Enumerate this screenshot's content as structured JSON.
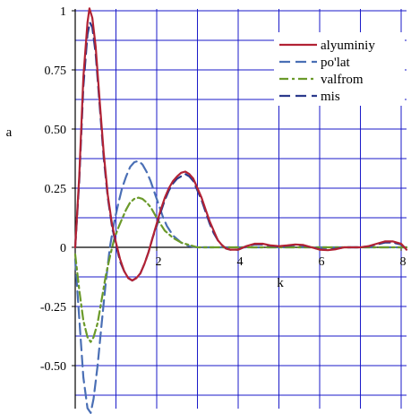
{
  "chart_data": {
    "type": "line",
    "title": "",
    "xlabel": "k",
    "ylabel": "a",
    "xlim": [
      0,
      8.2
    ],
    "ylim": [
      -0.68,
      1.02
    ],
    "grid": true,
    "grid_color": "#1a1ac8",
    "legend_position": "top-right",
    "x_ticks": [
      {
        "value": 2,
        "label": "2"
      },
      {
        "value": 4,
        "label": "4"
      },
      {
        "value": 6,
        "label": "6"
      },
      {
        "value": 8,
        "label": "8"
      }
    ],
    "y_ticks": [
      {
        "value": 1,
        "label": "1"
      },
      {
        "value": 0.75,
        "label": "0.75"
      },
      {
        "value": 0.5,
        "label": "0.50"
      },
      {
        "value": 0.25,
        "label": "0.25"
      },
      {
        "value": 0,
        "label": "0"
      },
      {
        "value": -0.25,
        "label": "-0.25"
      },
      {
        "value": -0.5,
        "label": "-0.50"
      }
    ],
    "series": [
      {
        "name": "alyuminiy",
        "color": "#b22234",
        "dash": "solid",
        "points": [
          [
            0,
            0
          ],
          [
            0.1,
            0.3
          ],
          [
            0.2,
            0.72
          ],
          [
            0.3,
            0.95
          ],
          [
            0.35,
            1.01
          ],
          [
            0.42,
            0.97
          ],
          [
            0.5,
            0.85
          ],
          [
            0.6,
            0.62
          ],
          [
            0.7,
            0.4
          ],
          [
            0.8,
            0.22
          ],
          [
            0.9,
            0.1
          ],
          [
            1.0,
            0.02
          ],
          [
            1.1,
            -0.05
          ],
          [
            1.2,
            -0.1
          ],
          [
            1.3,
            -0.13
          ],
          [
            1.4,
            -0.14
          ],
          [
            1.5,
            -0.13
          ],
          [
            1.6,
            -0.11
          ],
          [
            1.7,
            -0.07
          ],
          [
            1.8,
            -0.02
          ],
          [
            1.9,
            0.04
          ],
          [
            2.0,
            0.1
          ],
          [
            2.1,
            0.16
          ],
          [
            2.2,
            0.21
          ],
          [
            2.3,
            0.25
          ],
          [
            2.4,
            0.28
          ],
          [
            2.5,
            0.3
          ],
          [
            2.6,
            0.315
          ],
          [
            2.7,
            0.32
          ],
          [
            2.8,
            0.31
          ],
          [
            2.9,
            0.29
          ],
          [
            3.0,
            0.25
          ],
          [
            3.1,
            0.21
          ],
          [
            3.2,
            0.16
          ],
          [
            3.3,
            0.11
          ],
          [
            3.4,
            0.07
          ],
          [
            3.5,
            0.03
          ],
          [
            3.6,
            0.01
          ],
          [
            3.7,
            -0.005
          ],
          [
            3.8,
            -0.01
          ],
          [
            4.0,
            -0.01
          ],
          [
            4.2,
            0.005
          ],
          [
            4.4,
            0.015
          ],
          [
            4.6,
            0.015
          ],
          [
            4.8,
            0.008
          ],
          [
            5.0,
            0.005
          ],
          [
            5.2,
            0.008
          ],
          [
            5.4,
            0.012
          ],
          [
            5.6,
            0.01
          ],
          [
            5.8,
            0.0
          ],
          [
            6.0,
            -0.01
          ],
          [
            6.2,
            -0.012
          ],
          [
            6.4,
            -0.008
          ],
          [
            6.6,
            0.0
          ],
          [
            6.8,
            0.0
          ],
          [
            7.0,
            0.0
          ],
          [
            7.2,
            0.005
          ],
          [
            7.4,
            0.015
          ],
          [
            7.6,
            0.025
          ],
          [
            7.8,
            0.025
          ],
          [
            8.0,
            0.015
          ],
          [
            8.2,
            -0.01
          ]
        ]
      },
      {
        "name": "po'lat",
        "color": "#4a6fb5",
        "dash": "long",
        "points": [
          [
            0,
            -0.05
          ],
          [
            0.1,
            -0.3
          ],
          [
            0.2,
            -0.55
          ],
          [
            0.3,
            -0.68
          ],
          [
            0.38,
            -0.7
          ],
          [
            0.45,
            -0.64
          ],
          [
            0.55,
            -0.5
          ],
          [
            0.65,
            -0.32
          ],
          [
            0.75,
            -0.15
          ],
          [
            0.85,
            0.0
          ],
          [
            0.95,
            0.1
          ],
          [
            1.05,
            0.18
          ],
          [
            1.15,
            0.25
          ],
          [
            1.25,
            0.3
          ],
          [
            1.35,
            0.34
          ],
          [
            1.45,
            0.36
          ],
          [
            1.55,
            0.365
          ],
          [
            1.65,
            0.35
          ],
          [
            1.75,
            0.32
          ],
          [
            1.85,
            0.28
          ],
          [
            1.95,
            0.23
          ],
          [
            2.05,
            0.18
          ],
          [
            2.15,
            0.13
          ],
          [
            2.25,
            0.09
          ],
          [
            2.4,
            0.05
          ],
          [
            2.6,
            0.02
          ],
          [
            2.8,
            0.005
          ],
          [
            3.0,
            0.0
          ],
          [
            3.5,
            0.0
          ],
          [
            4.0,
            0.0
          ],
          [
            5.0,
            0.0
          ],
          [
            6.0,
            0.0
          ],
          [
            7.0,
            0.0
          ],
          [
            8.2,
            0.0
          ]
        ]
      },
      {
        "name": "valfrom",
        "color": "#6b9a2a",
        "dash": "dashdot",
        "points": [
          [
            0,
            -0.03
          ],
          [
            0.1,
            -0.18
          ],
          [
            0.2,
            -0.31
          ],
          [
            0.3,
            -0.38
          ],
          [
            0.38,
            -0.4
          ],
          [
            0.45,
            -0.38
          ],
          [
            0.55,
            -0.32
          ],
          [
            0.65,
            -0.22
          ],
          [
            0.75,
            -0.12
          ],
          [
            0.85,
            -0.04
          ],
          [
            0.95,
            0.03
          ],
          [
            1.05,
            0.08
          ],
          [
            1.15,
            0.12
          ],
          [
            1.25,
            0.16
          ],
          [
            1.35,
            0.19
          ],
          [
            1.45,
            0.205
          ],
          [
            1.55,
            0.21
          ],
          [
            1.65,
            0.205
          ],
          [
            1.75,
            0.19
          ],
          [
            1.85,
            0.17
          ],
          [
            1.95,
            0.14
          ],
          [
            2.05,
            0.11
          ],
          [
            2.2,
            0.07
          ],
          [
            2.4,
            0.04
          ],
          [
            2.6,
            0.02
          ],
          [
            2.8,
            0.01
          ],
          [
            3.0,
            0.0
          ],
          [
            4.0,
            0.0
          ],
          [
            5.0,
            0.0
          ],
          [
            6.0,
            0.0
          ],
          [
            7.0,
            0.0
          ],
          [
            8.2,
            0.0
          ]
        ]
      },
      {
        "name": "mis",
        "color": "#2b3a8c",
        "dash": "long",
        "points": [
          [
            0,
            0
          ],
          [
            0.1,
            0.28
          ],
          [
            0.2,
            0.68
          ],
          [
            0.3,
            0.9
          ],
          [
            0.36,
            0.95
          ],
          [
            0.42,
            0.93
          ],
          [
            0.5,
            0.82
          ],
          [
            0.6,
            0.6
          ],
          [
            0.7,
            0.38
          ],
          [
            0.8,
            0.21
          ],
          [
            0.9,
            0.09
          ],
          [
            1.0,
            0.01
          ],
          [
            1.1,
            -0.06
          ],
          [
            1.2,
            -0.1
          ],
          [
            1.3,
            -0.13
          ],
          [
            1.4,
            -0.14
          ],
          [
            1.5,
            -0.13
          ],
          [
            1.6,
            -0.11
          ],
          [
            1.7,
            -0.07
          ],
          [
            1.8,
            -0.02
          ],
          [
            1.9,
            0.04
          ],
          [
            2.0,
            0.09
          ],
          [
            2.1,
            0.15
          ],
          [
            2.2,
            0.2
          ],
          [
            2.3,
            0.24
          ],
          [
            2.4,
            0.27
          ],
          [
            2.5,
            0.29
          ],
          [
            2.6,
            0.3
          ],
          [
            2.7,
            0.31
          ],
          [
            2.8,
            0.3
          ],
          [
            2.9,
            0.28
          ],
          [
            3.0,
            0.24
          ],
          [
            3.1,
            0.2
          ],
          [
            3.2,
            0.15
          ],
          [
            3.3,
            0.1
          ],
          [
            3.4,
            0.06
          ],
          [
            3.5,
            0.03
          ],
          [
            3.6,
            0.01
          ],
          [
            3.7,
            -0.005
          ],
          [
            3.8,
            -0.01
          ],
          [
            4.0,
            -0.01
          ],
          [
            4.2,
            0.005
          ],
          [
            4.4,
            0.012
          ],
          [
            4.6,
            0.012
          ],
          [
            4.8,
            0.006
          ],
          [
            5.0,
            0.004
          ],
          [
            5.2,
            0.006
          ],
          [
            5.4,
            0.01
          ],
          [
            5.6,
            0.008
          ],
          [
            5.8,
            0.0
          ],
          [
            6.0,
            -0.008
          ],
          [
            6.2,
            -0.01
          ],
          [
            6.4,
            -0.006
          ],
          [
            6.6,
            0.0
          ],
          [
            7.0,
            0.0
          ],
          [
            7.2,
            0.004
          ],
          [
            7.4,
            0.012
          ],
          [
            7.6,
            0.02
          ],
          [
            7.8,
            0.02
          ],
          [
            8.0,
            0.012
          ],
          [
            8.2,
            -0.008
          ]
        ]
      }
    ]
  }
}
